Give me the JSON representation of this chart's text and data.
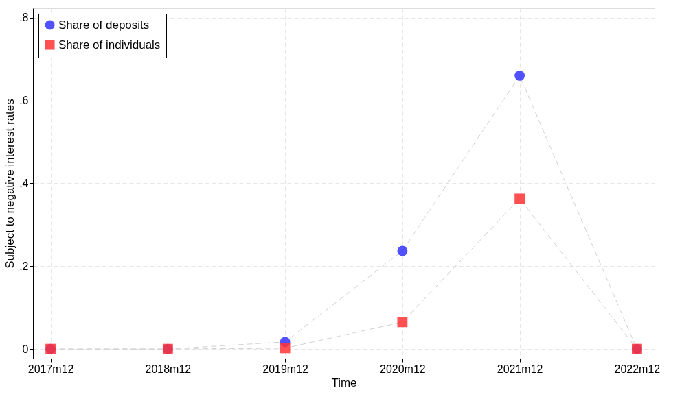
{
  "chart_data": {
    "type": "line",
    "xlabel": "Time",
    "ylabel": "Subject to negative interest rates",
    "categories": [
      "2017m12",
      "2018m12",
      "2019m12",
      "2020m12",
      "2021m12",
      "2022m12"
    ],
    "ylim": [
      -0.023,
      0.823
    ],
    "yticks": [
      0,
      {
        "value": 0.2,
        "label": ".2"
      },
      {
        "value": 0.4,
        "label": ".4"
      },
      {
        "value": 0.6,
        "label": ".6"
      },
      {
        "value": 0.8,
        "label": ".8"
      }
    ],
    "grid": true,
    "legend": "top left",
    "line_style": "dashed",
    "series": [
      {
        "name": "Share of deposits",
        "color": "#3333ff",
        "marker": "circle",
        "values": [
          0,
          0,
          0.017,
          0.237,
          0.66,
          0
        ]
      },
      {
        "name": "Share of individuals",
        "color": "#ff3333",
        "marker": "square",
        "values": [
          0,
          0,
          0.002,
          0.065,
          0.363,
          0
        ]
      }
    ]
  }
}
